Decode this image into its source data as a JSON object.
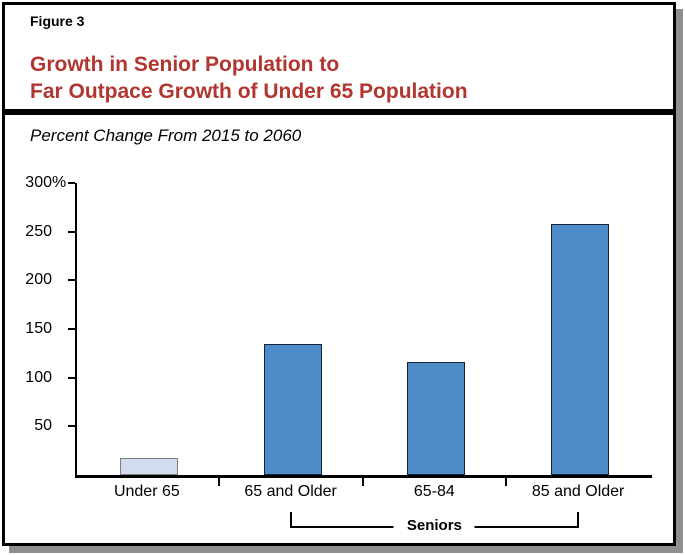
{
  "figure": {
    "label": "Figure 3",
    "title_line1": "Growth in Senior Population to",
    "title_line2": "Far Outpace Growth of Under 65 Population",
    "title_color": "#B23630",
    "subtitle": "Percent Change From 2015 to 2060"
  },
  "chart_data": {
    "type": "bar",
    "title": "Growth in Senior Population to Far Outpace Growth of Under 65 Population",
    "subtitle": "Percent Change From 2015 to 2060",
    "categories": [
      "Under 65",
      "65 and Older",
      "65-84",
      "85 and Older"
    ],
    "values": [
      17,
      135,
      116,
      258
    ],
    "bar_fill_colors": [
      "#D3DCEE",
      "#4E8CC8",
      "#4E8CC8",
      "#4E8CC8"
    ],
    "bar_border_colors": [
      "#808080",
      "#10243E",
      "#10243E",
      "#10243E"
    ],
    "ylim": [
      0,
      300
    ],
    "yticks": [
      {
        "value": 50,
        "label": "50",
        "suffix": ""
      },
      {
        "value": 100,
        "label": "100",
        "suffix": ""
      },
      {
        "value": 150,
        "label": "150",
        "suffix": ""
      },
      {
        "value": 200,
        "label": "200",
        "suffix": ""
      },
      {
        "value": 250,
        "label": "250",
        "suffix": ""
      },
      {
        "value": 300,
        "label": "300",
        "suffix": "%"
      }
    ],
    "xlabel": "",
    "ylabel": "Percent Change",
    "grid": false,
    "legend": false,
    "group_bracket": {
      "label": "Seniors",
      "from_category_index": 1,
      "to_category_index": 3
    }
  }
}
